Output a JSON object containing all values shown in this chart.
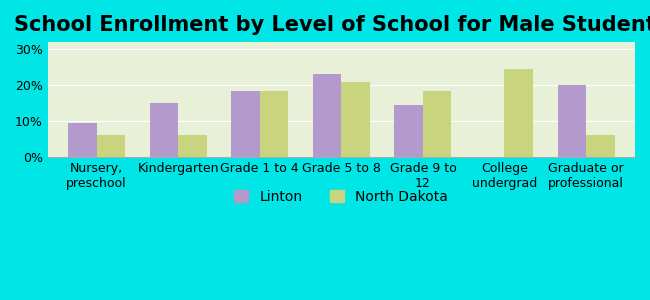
{
  "title": "School Enrollment by Level of School for Male Students",
  "categories": [
    "Nursery,\npreschool",
    "Kindergarten",
    "Grade 1 to 4",
    "Grade 5 to 8",
    "Grade 9 to\n12",
    "College\nundergrad",
    "Graduate or\nprofessional"
  ],
  "linton": [
    9.5,
    15.0,
    18.5,
    23.0,
    14.5,
    0.0,
    20.0
  ],
  "north_dakota": [
    6.0,
    6.0,
    18.5,
    21.0,
    18.5,
    24.5,
    6.0
  ],
  "linton_color": "#b399cc",
  "nd_color": "#c8d47e",
  "background_outer": "#00e5e5",
  "background_inner": "#e8f0d8",
  "ylim": [
    0,
    32
  ],
  "yticks": [
    0,
    10,
    20,
    30
  ],
  "yticklabels": [
    "0%",
    "10%",
    "20%",
    "30%"
  ],
  "legend_linton": "Linton",
  "legend_nd": "North Dakota",
  "title_fontsize": 15,
  "tick_fontsize": 9,
  "legend_fontsize": 10
}
